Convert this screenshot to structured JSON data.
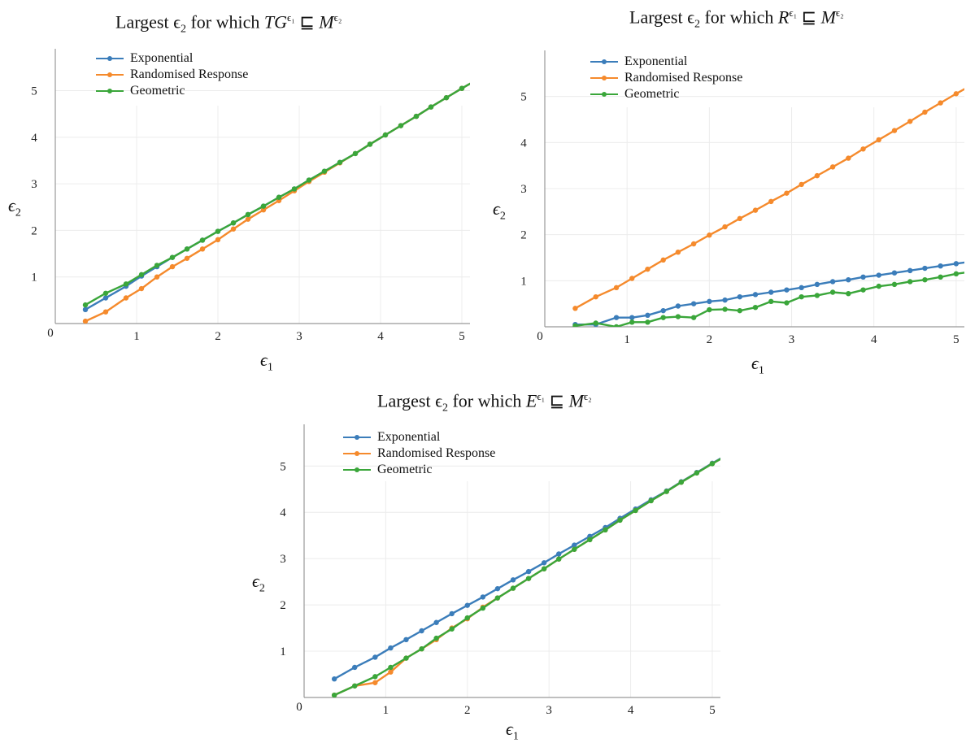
{
  "colors": {
    "exponential": "#3b7dba",
    "randomised": "#f58a2c",
    "geometric": "#3aa63a"
  },
  "chart_data": [
    {
      "type": "line",
      "title_prefix": "Largest ϵ",
      "title_sub": "2",
      "title_mid": " for which ",
      "title_lhs": "TG",
      "title_lhs_sup": "ϵ₁",
      "title_rel": " ⊑ ",
      "title_rhs": "M",
      "title_rhs_sup": "ϵ₂",
      "xlabel": "ϵ1",
      "ylabel": "ϵ2",
      "xlim": [
        0,
        5.1
      ],
      "ylim": [
        0,
        5.9
      ],
      "xticks": [
        "1",
        "2",
        "3",
        "4",
        "5"
      ],
      "yticks": [
        "1",
        "2",
        "3",
        "4",
        "5"
      ],
      "origin": "0",
      "grid": true,
      "legend": "top-left",
      "x": [
        0.37,
        0.62,
        0.87,
        1.06,
        1.25,
        1.44,
        1.62,
        1.81,
        2.0,
        2.19,
        2.37,
        2.56,
        2.75,
        2.94,
        3.12,
        3.31,
        3.5,
        3.69,
        3.87,
        4.06,
        4.25,
        4.44,
        4.62,
        4.81,
        5.0,
        5.2
      ],
      "series": [
        {
          "name": "Exponential",
          "values": [
            0.3,
            0.55,
            0.8,
            1.02,
            1.22,
            1.42,
            1.6,
            1.79,
            1.98,
            2.16,
            2.34,
            2.52,
            2.71,
            2.89,
            3.08,
            3.27,
            3.46,
            3.65,
            3.85,
            4.05,
            4.25,
            4.45,
            4.65,
            4.85,
            5.05,
            5.25
          ]
        },
        {
          "name": "Randomised Response",
          "values": [
            0.05,
            0.25,
            0.55,
            0.75,
            1.0,
            1.22,
            1.4,
            1.6,
            1.8,
            2.03,
            2.24,
            2.44,
            2.64,
            2.85,
            3.05,
            3.25,
            3.45,
            3.65,
            3.85,
            4.05,
            4.25,
            4.45,
            4.65,
            4.85,
            5.05,
            5.25
          ]
        },
        {
          "name": "Geometric",
          "values": [
            0.4,
            0.65,
            0.85,
            1.05,
            1.25,
            1.42,
            1.6,
            1.79,
            1.98,
            2.16,
            2.34,
            2.52,
            2.71,
            2.89,
            3.08,
            3.27,
            3.46,
            3.65,
            3.85,
            4.05,
            4.25,
            4.45,
            4.65,
            4.85,
            5.05,
            5.25
          ]
        }
      ]
    },
    {
      "type": "line",
      "title_prefix": "Largest ϵ",
      "title_sub": "2",
      "title_mid": " for which ",
      "title_lhs": "R",
      "title_lhs_sup": "ϵ₁",
      "title_rel": " ⊑ ",
      "title_rhs": "M",
      "title_rhs_sup": "ϵ₂",
      "xlabel": "ϵ1",
      "ylabel": "ϵ2",
      "xlim": [
        0,
        5.1
      ],
      "ylim": [
        0,
        6.0
      ],
      "xticks": [
        "1",
        "2",
        "3",
        "4",
        "5"
      ],
      "yticks": [
        "1",
        "2",
        "3",
        "4",
        "5"
      ],
      "origin": "0",
      "grid": true,
      "legend": "top-left",
      "x": [
        0.37,
        0.62,
        0.87,
        1.06,
        1.25,
        1.44,
        1.62,
        1.81,
        2.0,
        2.19,
        2.37,
        2.56,
        2.75,
        2.94,
        3.12,
        3.31,
        3.5,
        3.69,
        3.87,
        4.06,
        4.25,
        4.44,
        4.62,
        4.81,
        5.0,
        5.2
      ],
      "series": [
        {
          "name": "Exponential",
          "values": [
            0.05,
            0.05,
            0.2,
            0.2,
            0.25,
            0.35,
            0.45,
            0.5,
            0.55,
            0.58,
            0.65,
            0.7,
            0.75,
            0.8,
            0.85,
            0.92,
            0.98,
            1.02,
            1.08,
            1.12,
            1.17,
            1.22,
            1.27,
            1.32,
            1.37,
            1.42
          ]
        },
        {
          "name": "Randomised Response",
          "values": [
            0.4,
            0.65,
            0.85,
            1.05,
            1.25,
            1.45,
            1.62,
            1.8,
            1.99,
            2.17,
            2.35,
            2.53,
            2.72,
            2.9,
            3.09,
            3.28,
            3.47,
            3.66,
            3.86,
            4.06,
            4.26,
            4.46,
            4.66,
            4.86,
            5.06,
            5.26
          ]
        },
        {
          "name": "Geometric",
          "values": [
            0.02,
            0.08,
            0.0,
            0.1,
            0.1,
            0.2,
            0.22,
            0.2,
            0.37,
            0.38,
            0.35,
            0.42,
            0.55,
            0.52,
            0.65,
            0.68,
            0.75,
            0.72,
            0.8,
            0.88,
            0.92,
            0.98,
            1.02,
            1.08,
            1.15,
            1.2
          ]
        }
      ]
    },
    {
      "type": "line",
      "title_prefix": "Largest ϵ",
      "title_sub": "2",
      "title_mid": " for which ",
      "title_lhs": "E",
      "title_lhs_sup": "ϵ₁",
      "title_rel": " ⊑ ",
      "title_rhs": "M",
      "title_rhs_sup": "ϵ₂",
      "xlabel": "ϵ1",
      "ylabel": "ϵ2",
      "xlim": [
        0,
        5.1
      ],
      "ylim": [
        0,
        5.9
      ],
      "xticks": [
        "1",
        "2",
        "3",
        "4",
        "5"
      ],
      "yticks": [
        "1",
        "2",
        "3",
        "4",
        "5"
      ],
      "origin": "0",
      "grid": true,
      "legend": "top-left",
      "x": [
        0.37,
        0.62,
        0.87,
        1.06,
        1.25,
        1.44,
        1.62,
        1.81,
        2.0,
        2.19,
        2.37,
        2.56,
        2.75,
        2.94,
        3.12,
        3.31,
        3.5,
        3.69,
        3.87,
        4.06,
        4.25,
        4.44,
        4.62,
        4.81,
        5.0,
        5.2
      ],
      "series": [
        {
          "name": "Exponential",
          "values": [
            0.4,
            0.65,
            0.87,
            1.07,
            1.25,
            1.44,
            1.62,
            1.81,
            1.99,
            2.17,
            2.35,
            2.54,
            2.72,
            2.91,
            3.1,
            3.29,
            3.48,
            3.67,
            3.87,
            4.07,
            4.27,
            4.46,
            4.66,
            4.86,
            5.06,
            5.26
          ]
        },
        {
          "name": "Randomised Response",
          "values": [
            0.05,
            0.25,
            0.32,
            0.55,
            0.85,
            1.05,
            1.25,
            1.5,
            1.7,
            1.95,
            2.15,
            2.36,
            2.57,
            2.78,
            2.99,
            3.2,
            3.41,
            3.62,
            3.83,
            4.04,
            4.25,
            4.45,
            4.65,
            4.85,
            5.05,
            5.25
          ]
        },
        {
          "name": "Geometric",
          "values": [
            0.05,
            0.25,
            0.45,
            0.65,
            0.85,
            1.05,
            1.28,
            1.48,
            1.72,
            1.93,
            2.15,
            2.36,
            2.57,
            2.78,
            2.99,
            3.2,
            3.41,
            3.62,
            3.83,
            4.04,
            4.25,
            4.45,
            4.65,
            4.85,
            5.05,
            5.25
          ]
        }
      ]
    }
  ]
}
